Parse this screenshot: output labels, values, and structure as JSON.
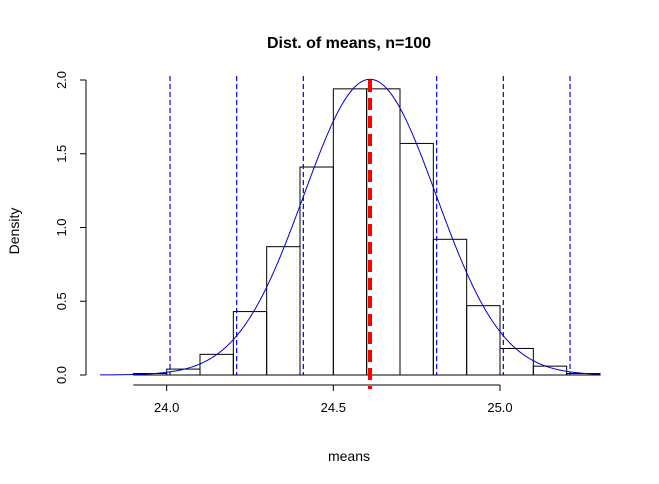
{
  "chart_data": {
    "type": "bar",
    "title": "Dist. of means, n=100",
    "xlabel": "means",
    "ylabel": "Density",
    "xlim": [
      23.8,
      25.3
    ],
    "ylim": [
      0,
      2.0
    ],
    "x_ticks": [
      "24.0",
      "24.5",
      "25.0"
    ],
    "x_tick_values": [
      24.0,
      24.5,
      25.0
    ],
    "y_ticks": [
      "0.0",
      "0.5",
      "1.0",
      "1.5",
      "2.0"
    ],
    "y_tick_values": [
      0,
      0.5,
      1.0,
      1.5,
      2.0
    ],
    "histogram": {
      "bin_edges": [
        23.9,
        24.0,
        24.1,
        24.2,
        24.3,
        24.4,
        24.5,
        24.6,
        24.7,
        24.8,
        24.9,
        25.0,
        25.1,
        25.2,
        25.3
      ],
      "densities": [
        0.01,
        0.04,
        0.14,
        0.43,
        0.87,
        1.41,
        1.94,
        1.94,
        1.57,
        0.92,
        0.47,
        0.18,
        0.06,
        0.01
      ]
    },
    "normal_curve": {
      "mean": 24.61,
      "sd": 0.199,
      "color": "#0000cc"
    },
    "mean_line": {
      "x": 24.61,
      "color": "#ff0000"
    },
    "sd_lines": {
      "x": [
        24.01,
        24.21,
        24.41,
        24.81,
        25.01,
        25.21
      ],
      "color": "#0000cc"
    }
  }
}
